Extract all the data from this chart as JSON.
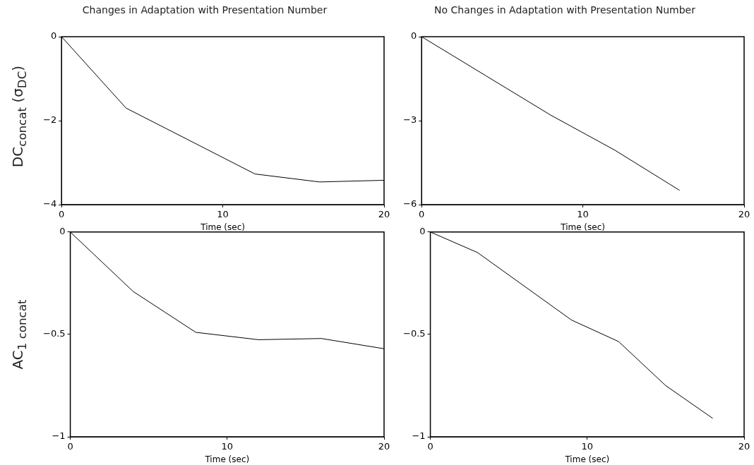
{
  "chart_data": [
    {
      "type": "line",
      "title": "Changes in Adaptation with Presentation Number",
      "ylabel": "DC$_{concat}$ (σ$_{DC}$)",
      "xlabel": "Time (sec)",
      "xlim": [
        0,
        20
      ],
      "xticks": [
        0,
        10,
        20
      ],
      "ylim": [
        -4,
        0
      ],
      "yticks": [
        -4,
        -2,
        0
      ],
      "grid": false,
      "series": [
        {
          "color": "#000000",
          "x": [
            0,
            4,
            12,
            16,
            20
          ],
          "values": [
            0,
            -1.7,
            -3.27,
            -3.46,
            -3.42
          ]
        }
      ]
    },
    {
      "type": "line",
      "title": "No Changes in Adaptation with Presentation Number",
      "xlabel": "Time (sec)",
      "xlim": [
        0,
        20
      ],
      "xticks": [
        0,
        10,
        20
      ],
      "ylim": [
        -6,
        0
      ],
      "yticks": [
        -6,
        -3,
        0
      ],
      "grid": false,
      "series": [
        {
          "color": "#000000",
          "x": [
            0,
            4,
            8,
            12,
            16
          ],
          "values": [
            0,
            -1.4,
            -2.8,
            -4.06,
            -5.49
          ]
        }
      ]
    },
    {
      "type": "line",
      "ylabel": "AC$_{1 concat}$",
      "xlabel": "Time (sec)",
      "xlim": [
        0,
        20
      ],
      "xticks": [
        0,
        10,
        20
      ],
      "ylim": [
        -1,
        0
      ],
      "yticks": [
        -1,
        -0.5,
        0
      ],
      "grid": false,
      "series": [
        {
          "color": "#000000",
          "x": [
            0,
            4,
            8,
            12,
            16,
            20
          ],
          "values": [
            0,
            -0.29,
            -0.49,
            -0.526,
            -0.52,
            -0.57
          ]
        }
      ]
    },
    {
      "type": "line",
      "xlabel": "Time (sec)",
      "xlim": [
        0,
        20
      ],
      "xticks": [
        0,
        10,
        20
      ],
      "ylim": [
        -1,
        0
      ],
      "yticks": [
        -1,
        -0.5,
        0
      ],
      "grid": false,
      "series": [
        {
          "color": "#000000",
          "x": [
            0,
            3,
            9,
            12,
            15,
            18
          ],
          "values": [
            0,
            -0.1,
            -0.43,
            -0.535,
            -0.75,
            -0.91
          ]
        }
      ]
    }
  ]
}
